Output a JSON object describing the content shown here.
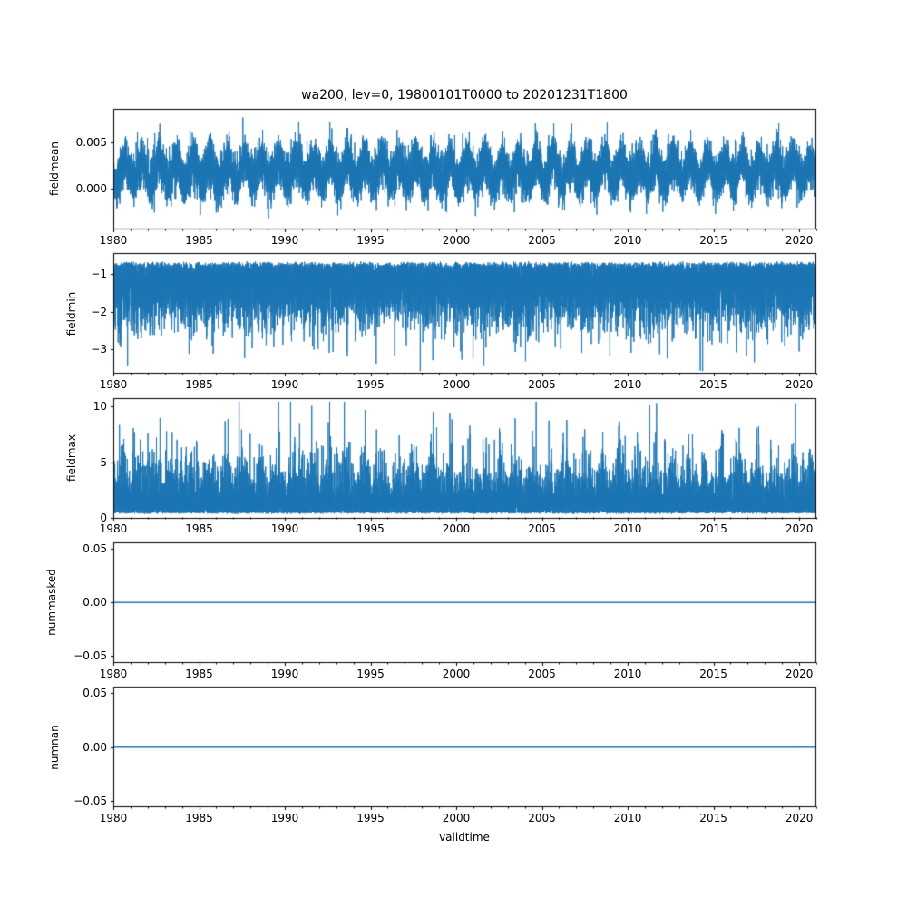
{
  "figure": {
    "title": "wa200, lev=0, 19800101T0000 to 20201231T1800",
    "xlabel": "validtime",
    "line_color": "#1f77b4",
    "axis_color": "#000000",
    "background": "#ffffff"
  },
  "x_axis": {
    "lim": [
      1980,
      2021
    ],
    "major_ticks": [
      {
        "v": 1980,
        "label": "1980"
      },
      {
        "v": 1985,
        "label": "1985"
      },
      {
        "v": 1990,
        "label": "1990"
      },
      {
        "v": 1995,
        "label": "1995"
      },
      {
        "v": 2000,
        "label": "2000"
      },
      {
        "v": 2005,
        "label": "2005"
      },
      {
        "v": 2010,
        "label": "2010"
      },
      {
        "v": 2015,
        "label": "2015"
      },
      {
        "v": 2020,
        "label": "2020"
      }
    ],
    "minor_tick_step_years": 1
  },
  "chart_data": [
    {
      "type": "line",
      "ylabel": "fieldmean",
      "ylim": [
        -0.0044,
        0.0086
      ],
      "yticks": [
        {
          "v": 0.005,
          "label": "0.005"
        },
        {
          "v": 0.0,
          "label": "0.000"
        }
      ],
      "series": {
        "name": "fieldmean",
        "kind": "noise-band",
        "mean": 0.0019,
        "seasonal_amplitude": 0.0011,
        "seasonal_phase": 0.42,
        "noise_sd": 0.00125,
        "spike_prob": 0.0015,
        "spike_down": 0.0032,
        "approx_min": -0.0042,
        "approx_max": 0.0084,
        "seed": 101
      }
    },
    {
      "type": "line",
      "ylabel": "fieldmin",
      "ylim": [
        -3.65,
        -0.45
      ],
      "yticks": [
        {
          "v": -1,
          "label": "−1"
        },
        {
          "v": -2,
          "label": "−2"
        },
        {
          "v": -3,
          "label": "−3"
        }
      ],
      "series": {
        "name": "fieldmin",
        "kind": "skew-down",
        "top": -0.66,
        "jitter": 0.08,
        "halfgauss_scale": 0.73,
        "spike_prob": 0.004,
        "spike_extra": 0.7,
        "approx_min": -3.58,
        "approx_max": -0.55,
        "seed": 202
      }
    },
    {
      "type": "line",
      "ylabel": "fieldmax",
      "ylim": [
        0,
        10.8
      ],
      "yticks": [
        {
          "v": 10,
          "label": "10"
        },
        {
          "v": 5,
          "label": "5"
        },
        {
          "v": 0,
          "label": "0"
        }
      ],
      "series": {
        "name": "fieldmax",
        "kind": "skew-up",
        "base": 0.38,
        "jitter": 0.1,
        "exp_scale": 1.25,
        "seasonal_mod": 0.22,
        "seasonal_phase": 0.3,
        "approx_min": 0.3,
        "approx_max": 10.45,
        "seed": 303
      }
    },
    {
      "type": "line",
      "ylabel": "nummasked",
      "ylim": [
        -0.0561,
        0.0561
      ],
      "yticks": [
        {
          "v": 0.05,
          "label": "0.05"
        },
        {
          "v": 0.0,
          "label": "0.00"
        },
        {
          "v": -0.05,
          "label": "−0.05"
        }
      ],
      "series": {
        "name": "nummasked",
        "kind": "constant",
        "value": 0
      }
    },
    {
      "type": "line",
      "ylabel": "numnan",
      "ylim": [
        -0.0561,
        0.0561
      ],
      "yticks": [
        {
          "v": 0.05,
          "label": "0.05"
        },
        {
          "v": 0.0,
          "label": "0.00"
        },
        {
          "v": -0.05,
          "label": "−0.05"
        }
      ],
      "series": {
        "name": "numnan",
        "kind": "constant",
        "value": 0
      }
    }
  ]
}
